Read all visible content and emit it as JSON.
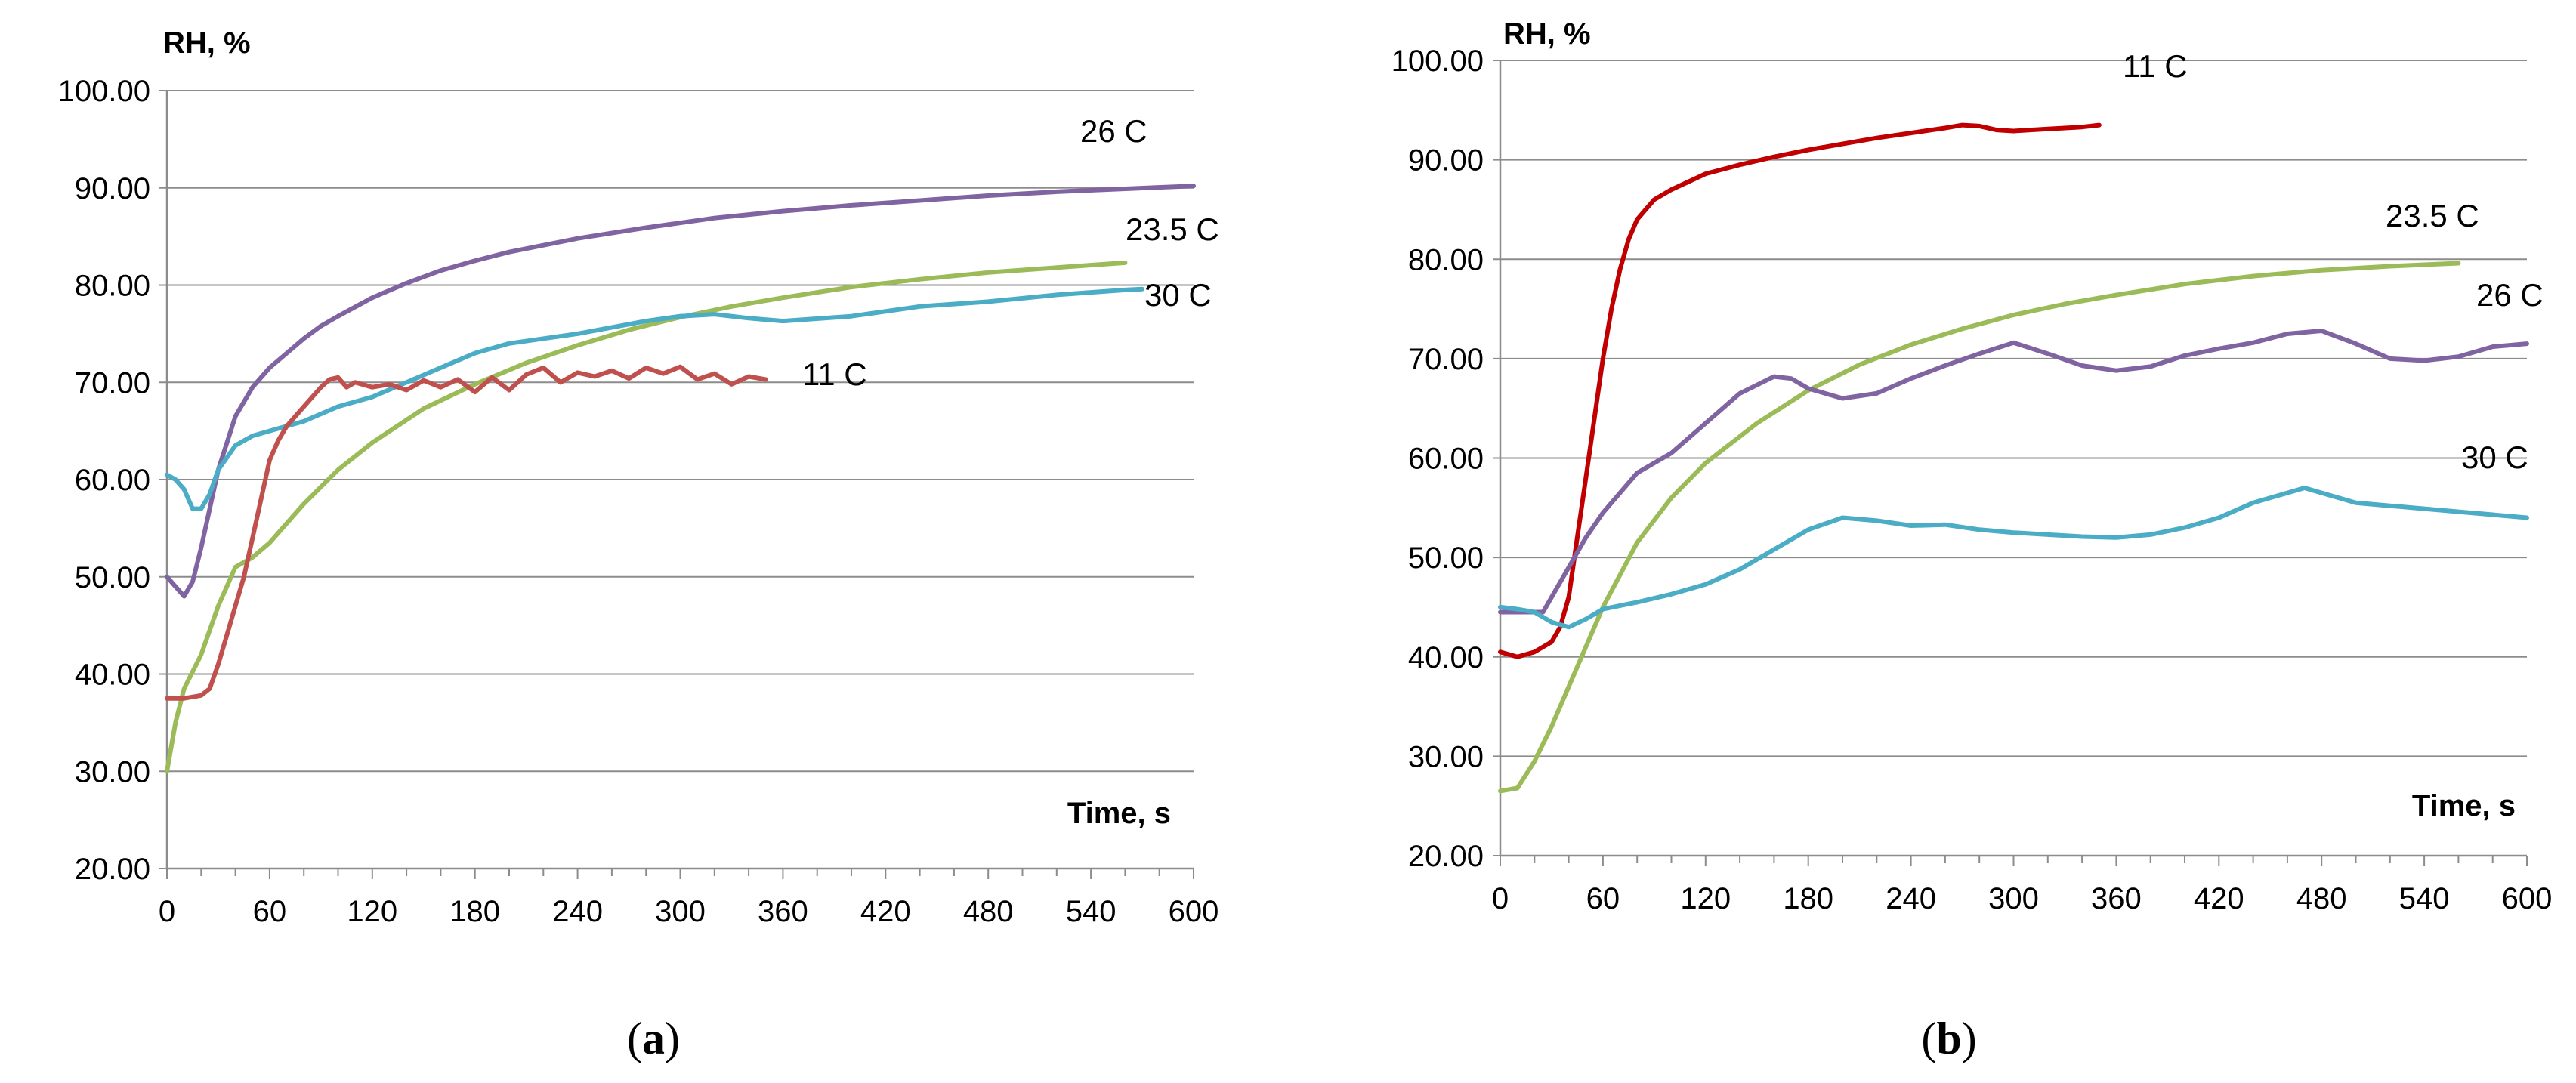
{
  "chart_data": [
    {
      "type": "line",
      "panel": "a",
      "caption": {
        "open": "(",
        "letter": "a",
        "close": ")"
      },
      "ylabel": "RH, %",
      "xlabel": "Time, s",
      "xlim": [
        0,
        600
      ],
      "ylim": [
        20,
        100
      ],
      "x_ticks": [
        "0",
        "60",
        "120",
        "180",
        "240",
        "300",
        "360",
        "420",
        "480",
        "540",
        "600"
      ],
      "y_ticks": [
        "20.00",
        "30.00",
        "40.00",
        "50.00",
        "60.00",
        "70.00",
        "80.00",
        "90.00",
        "100.00"
      ],
      "grid": "horizontal",
      "series": [
        {
          "name": "26 C",
          "label": "26 C",
          "color": "#8064A2",
          "x": [
            0,
            5,
            10,
            15,
            20,
            25,
            30,
            40,
            50,
            60,
            70,
            80,
            90,
            100,
            120,
            140,
            160,
            180,
            200,
            240,
            280,
            320,
            360,
            400,
            440,
            480,
            520,
            560,
            600
          ],
          "y": [
            50,
            49,
            48,
            49.5,
            53,
            57,
            61,
            66.5,
            69.5,
            71.5,
            73,
            74.5,
            75.8,
            76.8,
            78.7,
            80.2,
            81.5,
            82.5,
            83.4,
            84.8,
            85.9,
            86.9,
            87.6,
            88.2,
            88.7,
            89.2,
            89.6,
            89.9,
            90.2
          ]
        },
        {
          "name": "23.5 C",
          "label": "23.5 C",
          "color": "#9BBB59",
          "x": [
            0,
            5,
            10,
            20,
            30,
            40,
            50,
            60,
            80,
            100,
            120,
            150,
            180,
            210,
            240,
            270,
            300,
            330,
            360,
            400,
            440,
            480,
            520,
            560
          ],
          "y": [
            30,
            35,
            38.5,
            42,
            47,
            51,
            52,
            53.5,
            57.5,
            61,
            63.8,
            67.3,
            69.8,
            72,
            73.8,
            75.4,
            76.7,
            77.8,
            78.7,
            79.8,
            80.6,
            81.3,
            81.8,
            82.3
          ]
        },
        {
          "name": "30 C",
          "label": "30 C",
          "color": "#4BACC6",
          "x": [
            0,
            5,
            10,
            15,
            20,
            25,
            30,
            40,
            50,
            60,
            80,
            100,
            120,
            140,
            160,
            180,
            200,
            240,
            280,
            300,
            320,
            340,
            360,
            400,
            440,
            480,
            520,
            560,
            570
          ],
          "y": [
            60.5,
            60,
            59,
            57,
            57,
            58.5,
            61,
            63.5,
            64.5,
            65,
            66,
            67.5,
            68.5,
            70,
            71.5,
            73,
            74,
            75,
            76.3,
            76.8,
            77,
            76.6,
            76.3,
            76.8,
            77.8,
            78.3,
            79,
            79.5,
            79.6
          ]
        },
        {
          "name": "11 C",
          "label": "11 C",
          "color": "#C0504D",
          "x": [
            0,
            10,
            20,
            25,
            30,
            35,
            40,
            45,
            50,
            55,
            60,
            65,
            70,
            80,
            90,
            95,
            100,
            105,
            110,
            120,
            130,
            140,
            150,
            160,
            170,
            180,
            190,
            200,
            210,
            220,
            230,
            240,
            250,
            260,
            270,
            280,
            290,
            300,
            310,
            320,
            330,
            340,
            350
          ],
          "y": [
            37.5,
            37.5,
            37.8,
            38.5,
            41,
            44,
            47,
            50,
            54,
            58,
            62,
            64,
            65.5,
            67.5,
            69.5,
            70.3,
            70.5,
            69.5,
            70,
            69.5,
            69.8,
            69.2,
            70.2,
            69.5,
            70.3,
            69,
            70.5,
            69.2,
            70.8,
            71.5,
            70,
            71,
            70.6,
            71.2,
            70.4,
            71.5,
            70.9,
            71.6,
            70.3,
            70.9,
            69.8,
            70.6,
            70.3
          ]
        }
      ]
    },
    {
      "type": "line",
      "panel": "b",
      "caption": {
        "open": "(",
        "letter": "b",
        "close": ")"
      },
      "ylabel": "RH, %",
      "xlabel": "Time, s",
      "xlim": [
        0,
        600
      ],
      "ylim": [
        20,
        100
      ],
      "x_ticks": [
        "0",
        "60",
        "120",
        "180",
        "240",
        "300",
        "360",
        "420",
        "480",
        "540",
        "600"
      ],
      "y_ticks": [
        "20.00",
        "30.00",
        "40.00",
        "50.00",
        "60.00",
        "70.00",
        "80.00",
        "90.00",
        "100.00"
      ],
      "grid": "horizontal",
      "series": [
        {
          "name": "11 C",
          "label": "11 C",
          "color": "#C00000",
          "x": [
            0,
            10,
            20,
            30,
            35,
            40,
            45,
            50,
            55,
            60,
            65,
            70,
            75,
            80,
            85,
            90,
            100,
            110,
            120,
            140,
            160,
            180,
            200,
            220,
            240,
            260,
            270,
            280,
            290,
            300,
            320,
            340,
            350
          ],
          "y": [
            40.5,
            40,
            40.5,
            41.5,
            43,
            46,
            52,
            58,
            64,
            70,
            75,
            79,
            82,
            84,
            85,
            86,
            87,
            87.8,
            88.6,
            89.5,
            90.3,
            91,
            91.6,
            92.2,
            92.7,
            93.2,
            93.5,
            93.4,
            93,
            92.9,
            93.1,
            93.3,
            93.5
          ]
        },
        {
          "name": "23.5 C",
          "label": "23.5 C",
          "color": "#9BBB59",
          "x": [
            0,
            10,
            20,
            30,
            40,
            50,
            60,
            80,
            100,
            120,
            150,
            180,
            210,
            240,
            270,
            300,
            330,
            360,
            400,
            440,
            480,
            520,
            560
          ],
          "y": [
            26.5,
            26.8,
            29.5,
            33,
            37,
            41,
            45,
            51.5,
            56,
            59.5,
            63.5,
            66.8,
            69.4,
            71.4,
            73,
            74.4,
            75.5,
            76.4,
            77.5,
            78.3,
            78.9,
            79.3,
            79.6
          ]
        },
        {
          "name": "26 C",
          "label": "26 C",
          "color": "#8064A2",
          "x": [
            0,
            15,
            25,
            30,
            40,
            50,
            60,
            80,
            100,
            120,
            140,
            160,
            170,
            180,
            200,
            220,
            240,
            260,
            280,
            300,
            320,
            340,
            360,
            380,
            400,
            420,
            440,
            460,
            480,
            500,
            520,
            540,
            560,
            580,
            600
          ],
          "y": [
            44.5,
            44.5,
            44.5,
            46,
            49,
            52,
            54.5,
            58.5,
            60.5,
            63.5,
            66.5,
            68.2,
            68,
            67,
            66,
            66.5,
            68,
            69.3,
            70.5,
            71.6,
            70.5,
            69.3,
            68.8,
            69.2,
            70.3,
            71,
            71.6,
            72.5,
            72.8,
            71.5,
            70,
            69.8,
            70.2,
            71.2,
            71.5
          ]
        },
        {
          "name": "30 C",
          "label": "30 C",
          "color": "#4BACC6",
          "x": [
            0,
            10,
            20,
            30,
            40,
            50,
            60,
            80,
            100,
            120,
            140,
            160,
            180,
            200,
            220,
            240,
            260,
            280,
            300,
            320,
            340,
            360,
            380,
            400,
            420,
            440,
            460,
            470,
            480,
            500,
            520,
            540,
            560,
            580,
            600
          ],
          "y": [
            45,
            44.8,
            44.5,
            43.5,
            43,
            43.8,
            44.8,
            45.5,
            46.3,
            47.3,
            48.8,
            50.8,
            52.8,
            54,
            53.7,
            53.2,
            53.3,
            52.8,
            52.5,
            52.3,
            52.1,
            52,
            52.3,
            53,
            54,
            55.5,
            56.5,
            57,
            56.5,
            55.5,
            55.2,
            54.9,
            54.6,
            54.3,
            54
          ]
        }
      ]
    }
  ]
}
